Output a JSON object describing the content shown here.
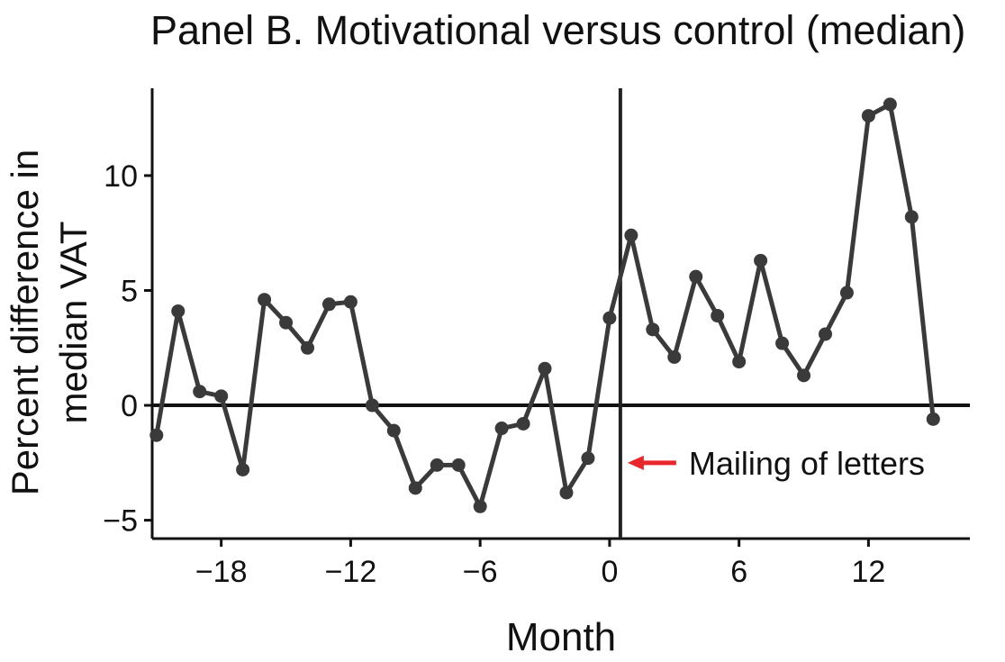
{
  "chart_data": {
    "type": "line",
    "title": "Panel B. Motivational versus control (median)",
    "xlabel": "Month",
    "ylabel_lines": [
      "Percent difference in",
      "median VAT"
    ],
    "xlim": [
      -21.2,
      16.7
    ],
    "ylim": [
      -5.8,
      13.8
    ],
    "xticks": [
      -18,
      -12,
      -6,
      0,
      6,
      12
    ],
    "xtick_labels": [
      "−18",
      "−12",
      "−6",
      "0",
      "6",
      "12"
    ],
    "yticks": [
      -5,
      0,
      5,
      10
    ],
    "ytick_labels": [
      "−5",
      "0",
      "5",
      "10"
    ],
    "grid": false,
    "reference_lines": {
      "horizontal_y": 0,
      "vertical_x": 0.5
    },
    "annotation": {
      "text": "Mailing of letters",
      "arrow_color": "#e8262b",
      "arrow_y": -2.5
    },
    "line_color": "#3a3a3a",
    "series": [
      {
        "x": [
          -21,
          -20,
          -19,
          -18,
          -17,
          -16,
          -15,
          -14,
          -13,
          -12,
          -11,
          -10,
          -9,
          -8,
          -7,
          -6,
          -5,
          -4,
          -3,
          -2,
          -1,
          0,
          1,
          2,
          3,
          4,
          5,
          6,
          7,
          8,
          9,
          10,
          11,
          12,
          13,
          14,
          15
        ],
        "values": [
          -1.3,
          4.1,
          0.6,
          0.4,
          -2.8,
          4.6,
          3.6,
          2.5,
          4.4,
          4.5,
          0.0,
          -1.1,
          -3.6,
          -2.6,
          -2.6,
          -4.4,
          -1.0,
          -0.8,
          1.6,
          -3.8,
          -2.3,
          3.8,
          7.4,
          3.3,
          2.1,
          5.6,
          3.9,
          1.9,
          6.3,
          2.7,
          1.3,
          3.1,
          4.9,
          12.6,
          13.1,
          8.2,
          -0.6
        ]
      }
    ]
  }
}
